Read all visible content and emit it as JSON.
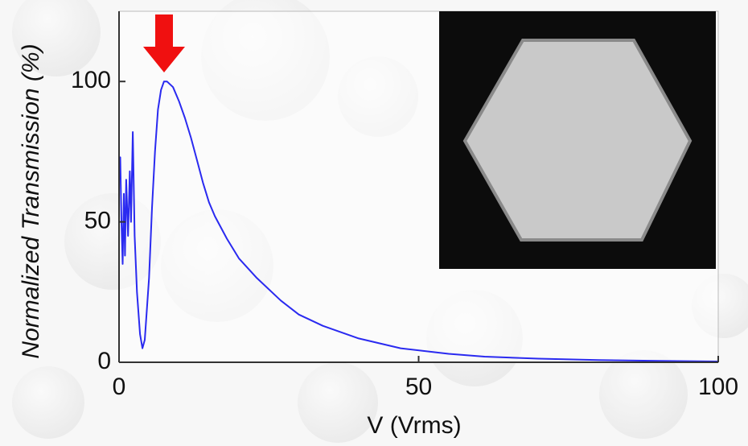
{
  "chart_data": {
    "type": "line",
    "xlabel": "V (Vrms)",
    "ylabel": "Normalized Transmission (%)",
    "x": [
      0,
      0.2,
      0.4,
      0.6,
      0.8,
      1.0,
      1.2,
      1.5,
      1.8,
      2.0,
      2.3,
      2.6,
      3.0,
      3.5,
      3.9,
      4.3,
      5,
      5.5,
      6,
      6.5,
      7,
      7.5,
      8,
      9,
      10,
      11,
      12,
      13,
      14,
      15,
      16,
      18,
      20,
      23,
      27,
      30,
      34,
      40,
      47,
      55,
      61,
      70,
      80,
      90,
      100
    ],
    "series": [
      {
        "color": "#2a2af0",
        "values": [
          71,
          73,
          50,
          35,
          60,
          38,
          65,
          45,
          68,
          50,
          82,
          45,
          25,
          10,
          5,
          8,
          30,
          55,
          75,
          90,
          97,
          100,
          100,
          98,
          93,
          87,
          80,
          72,
          64,
          57,
          52,
          44,
          37,
          30,
          22,
          17,
          13,
          8.5,
          5,
          3,
          2,
          1.3,
          0.8,
          0.5,
          0.3
        ]
      }
    ],
    "xlim": [
      0,
      100
    ],
    "ylim": [
      0,
      125
    ],
    "xticks": [
      0,
      50,
      100
    ],
    "yticks": [
      0,
      50,
      100
    ]
  }
}
